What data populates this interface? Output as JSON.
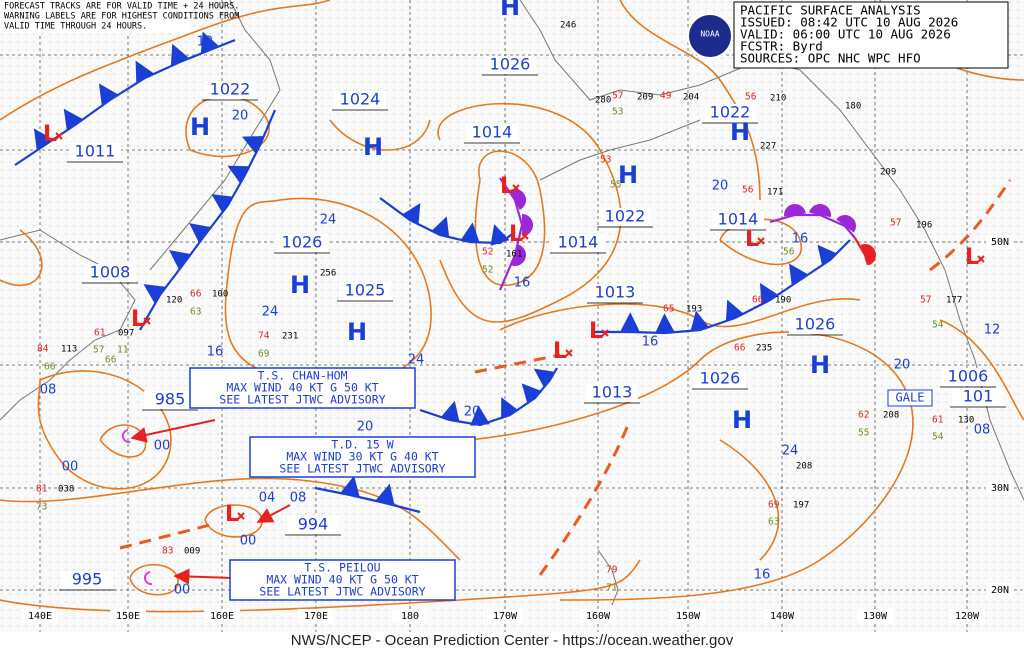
{
  "header_note": [
    "FORECAST TRACKS ARE FOR VALID TIME + 24 HOURS.",
    "WARNING LABELS ARE FOR HIGHEST CONDITIONS FROM",
    "VALID TIME THROUGH 24 HOURS."
  ],
  "info_box": [
    "PACIFIC SURFACE ANALYSIS",
    "ISSUED: 08:42 UTC 10 AUG 2026",
    "VALID: 06:00 UTC 10 AUG 2026",
    "FCSTR: Byrd",
    "SOURCES: OPC NHC WPC HFO"
  ],
  "logo": "NOAA",
  "pressure_labels": [
    "1011",
    "1022",
    "1024",
    "1026",
    "1014",
    "1022",
    "1026",
    "1025",
    "1008",
    "1022",
    "1014",
    "1014",
    "1013",
    "1026",
    "1026",
    "1013",
    "1006",
    "101",
    "985",
    "994",
    "995"
  ],
  "highs": [
    "H",
    "H",
    "H",
    "H",
    "H",
    "H",
    "H",
    "H",
    "H"
  ],
  "lows": [
    "L",
    "L",
    "L",
    "L",
    "L",
    "L",
    "L",
    "L",
    "L"
  ],
  "isobar_values": [
    "12",
    "20",
    "24",
    "16",
    "24",
    "16",
    "24",
    "20",
    "16",
    "20",
    "16",
    "24",
    "16",
    "12",
    "20",
    "08",
    "00",
    "00",
    "04",
    "08",
    "00",
    "00",
    "20",
    "08"
  ],
  "advisories": [
    {
      "lines": [
        "T.S. CHAN-HOM",
        "MAX WIND 40 KT G 50 KT",
        "SEE LATEST JTWC ADVISORY"
      ]
    },
    {
      "lines": [
        "T.D. 15 W",
        "MAX WIND 30 KT G 40 KT",
        "SEE LATEST JTWC ADVISORY"
      ]
    },
    {
      "lines": [
        "T.S. PEILOU",
        "MAX WIND 40 KT G 50 KT",
        "SEE LATEST JTWC ADVISORY"
      ]
    }
  ],
  "warning": "GALE",
  "longitudes": [
    "140E",
    "150E",
    "160E",
    "170E",
    "180",
    "170W",
    "160W",
    "150W",
    "140W",
    "130W",
    "120W"
  ],
  "latitudes": [
    "50N",
    "30N",
    "20N"
  ],
  "station_pressures": [
    "246",
    "280",
    "209",
    "204",
    "210",
    "180",
    "227",
    "171",
    "209",
    "196",
    "177",
    "256",
    "100",
    "120",
    "097",
    "113",
    "231",
    "161",
    "193",
    "190",
    "235",
    "208",
    "130",
    "208",
    "197",
    "038",
    "009"
  ],
  "station_temps": [
    "57",
    "49",
    "56",
    "53",
    "56",
    "52",
    "65",
    "66",
    "66",
    "66",
    "74",
    "84",
    "61",
    "62",
    "61",
    "69",
    "81",
    "83",
    "79",
    "57",
    "57"
  ],
  "station_dewpoints": [
    "53",
    "55",
    "63",
    "69",
    "66",
    "57",
    "11",
    "66",
    "52",
    "56",
    "54",
    "55",
    "54",
    "63",
    "73",
    "71"
  ],
  "footer": "NWS/NCEP - Ocean Prediction Center - https://ocean.weather.gov"
}
